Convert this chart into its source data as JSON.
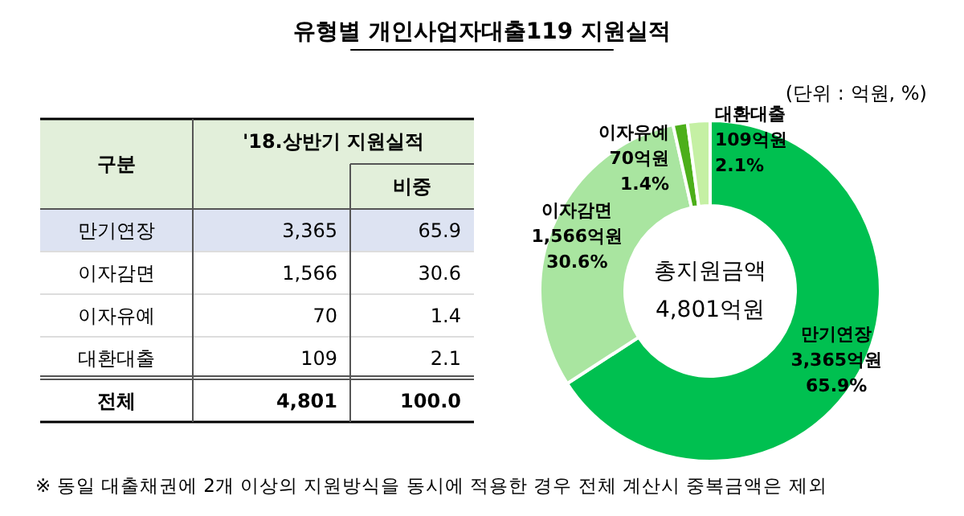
{
  "chart_data": [
    {
      "type": "other",
      "title": "유형별 개인사업자대출119 지원실적",
      "xlabel": "구분",
      "categories": [
        "만기연장",
        "이자감면",
        "이자유예",
        "대환대출",
        "전체"
      ],
      "series": [
        {
          "name": "'18.상반기 지원실적",
          "values": [
            3365,
            1566,
            70,
            109,
            4801
          ],
          "value_labels": [
            "3,365",
            "1,566",
            "70",
            "109",
            "4,801"
          ]
        },
        {
          "name": "비중",
          "values": [
            65.9,
            30.6,
            1.4,
            2.1,
            100.0
          ],
          "value_labels": [
            "65.9",
            "30.6",
            "1.4",
            "2.1",
            "100.0"
          ]
        }
      ],
      "annotations": [
        "※ 동일 대출채권에 2개 이상의 지원방식을 동시에 적용한 경우 전체 계산시 중복금액은 제외"
      ]
    },
    {
      "type": "donut",
      "subtitle": "(단위 : 억원, %)",
      "categories": [
        "만기연장",
        "이자감면",
        "이자유예",
        "대환대출"
      ],
      "values": [
        3365,
        1566,
        70,
        109
      ],
      "colors": [
        "#00c050",
        "#a9e5a0",
        "#4caf1a",
        "#c5f0a4"
      ],
      "value_labels": [
        "3,365억원\n65.9%",
        "1,566억원\n30.6%",
        "70억원\n1.4%",
        "109억원\n2.1%"
      ],
      "annotations": [
        "총지원금액\n4,801억원"
      ]
    }
  ]
}
